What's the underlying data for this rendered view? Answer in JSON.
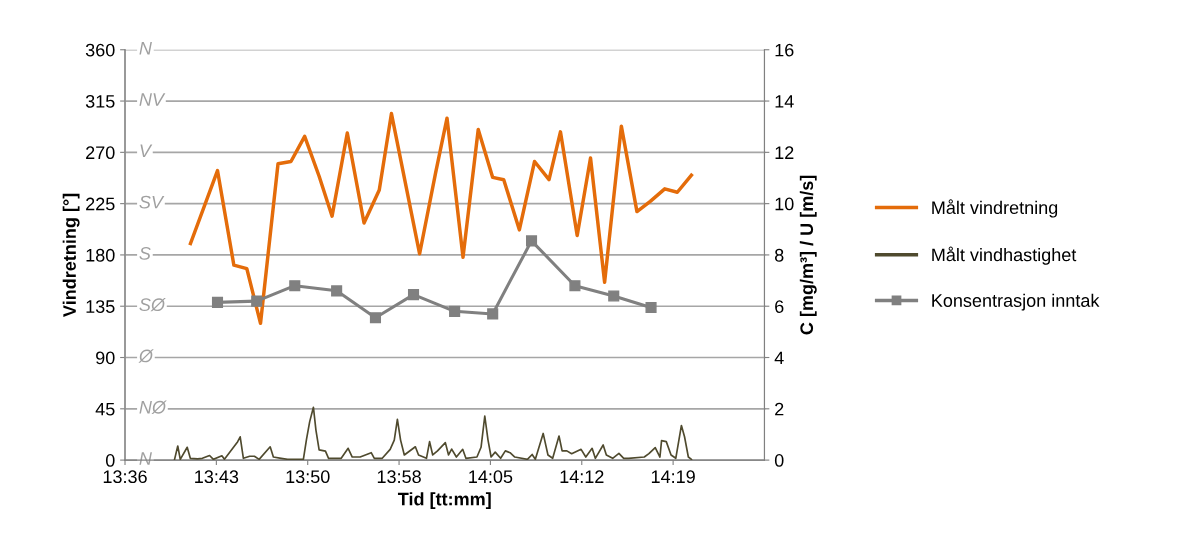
{
  "chart_data": {
    "type": "line",
    "xlabel": "Tid [tt:mm]",
    "ylabel": "Vindretning [°]",
    "y2label": "C [mg/m³] / U [m/s]",
    "xlim": [
      13.6,
      14.44
    ],
    "xticks": [
      {
        "value": 13.6,
        "label": "13:36"
      },
      {
        "value": 13.72,
        "label": "13:43"
      },
      {
        "value": 13.84,
        "label": "13:50"
      },
      {
        "value": 13.96,
        "label": "13:58"
      },
      {
        "value": 14.08,
        "label": "14:05"
      },
      {
        "value": 14.2,
        "label": "14:12"
      },
      {
        "value": 14.32,
        "label": "14:19"
      }
    ],
    "ylim": [
      0,
      360
    ],
    "yticks": [
      0,
      45,
      90,
      135,
      180,
      225,
      270,
      315,
      360
    ],
    "y2lim": [
      0,
      16
    ],
    "y2ticks": [
      0,
      2,
      4,
      6,
      8,
      10,
      12,
      14,
      16
    ],
    "annotations": [
      "N",
      "N"
    ],
    "ref_lines": [
      {
        "axis": "y",
        "value": 45,
        "label": "NØ"
      },
      {
        "axis": "y",
        "value": 90,
        "label": "Ø"
      },
      {
        "axis": "y",
        "value": 135,
        "label": "SØ"
      },
      {
        "axis": "y",
        "value": 180,
        "label": "S"
      },
      {
        "axis": "y",
        "value": 225,
        "label": "SV"
      },
      {
        "axis": "y",
        "value": 270,
        "label": "V"
      },
      {
        "axis": "y",
        "value": 315,
        "label": "NV"
      }
    ],
    "legend": "right",
    "series": [
      {
        "name": "Målt vindretning",
        "color": "#e46c0a",
        "axis": "y",
        "marker": "none",
        "x": [
          13.686,
          13.7215,
          13.743,
          13.76,
          13.778,
          13.801,
          13.818,
          13.836,
          13.855,
          13.872,
          13.892,
          13.914,
          13.934,
          13.95,
          13.987,
          14.008,
          14.023,
          14.044,
          14.064,
          14.083,
          14.0975,
          14.118,
          14.138,
          14.157,
          14.172,
          14.194,
          14.2115,
          14.23,
          14.252,
          14.2725,
          14.29,
          14.309,
          14.3255,
          14.344
        ],
        "values": [
          190,
          254,
          171,
          168,
          120,
          260,
          262,
          284,
          249,
          214,
          287,
          208,
          237,
          304,
          181,
          252,
          300,
          178,
          290,
          248,
          246,
          202,
          262,
          246,
          288,
          197,
          265,
          156,
          293,
          218,
          227,
          238,
          235,
          250
        ]
      },
      {
        "name": "Målt vindhastighet",
        "color": "#4f4a2e",
        "axis": "y2",
        "marker": "none",
        "x": [
          13.6651,
          13.6693,
          13.6726,
          13.6817,
          13.6858,
          13.6954,
          13.7016,
          13.7111,
          13.7161,
          13.7273,
          13.7306,
          13.748,
          13.7513,
          13.7555,
          13.7638,
          13.77,
          13.7762,
          13.7907,
          13.7949,
          13.8052,
          13.8135,
          13.8343,
          13.8384,
          13.8426,
          13.8475,
          13.8508,
          13.855,
          13.8633,
          13.8674,
          13.884,
          13.8931,
          13.8985,
          13.9089,
          13.9234,
          13.9275,
          13.9379,
          13.9483,
          13.9537,
          13.9578,
          13.962,
          13.9669,
          13.9814,
          13.9856,
          13.996,
          14.0001,
          14.0042,
          14.0105,
          14.0208,
          14.025,
          14.0291,
          14.0353,
          14.0436,
          14.0478,
          14.0623,
          14.0677,
          14.0726,
          14.0768,
          14.0809,
          14.0863,
          14.0934,
          14.0996,
          14.1058,
          14.112,
          14.1286,
          14.1348,
          14.139,
          14.1493,
          14.1556,
          14.1618,
          14.1701,
          14.1742,
          14.1804,
          14.1867,
          14.1991,
          14.2053,
          14.2136,
          14.2178,
          14.2281,
          14.2323,
          14.2406,
          14.2488,
          14.2551,
          14.2613,
          14.2821,
          14.2882,
          14.2965,
          14.3027,
          14.3048,
          14.311,
          14.3173,
          14.3235,
          14.3309,
          14.335,
          14.34,
          14.3441
        ],
        "values": [
          0.03,
          0.55,
          0.03,
          0.5,
          0.07,
          0.05,
          0.07,
          0.18,
          0.03,
          0.17,
          0.03,
          0.72,
          0.91,
          0.07,
          0.15,
          0.15,
          0.03,
          0.52,
          0.12,
          0.07,
          0.03,
          0.03,
          0.81,
          1.5,
          2.06,
          1.17,
          0.4,
          0.35,
          0.07,
          0.07,
          0.46,
          0.12,
          0.12,
          0.29,
          0.07,
          0.07,
          0.42,
          0.78,
          1.59,
          0.78,
          0.2,
          0.52,
          0.2,
          0.07,
          0.72,
          0.2,
          0.36,
          0.68,
          0.2,
          0.43,
          0.12,
          0.42,
          0.07,
          0.12,
          0.5,
          1.72,
          0.79,
          0.12,
          0.31,
          0.07,
          0.36,
          0.29,
          0.12,
          0.03,
          0.22,
          0.03,
          1.04,
          0.2,
          0.07,
          0.94,
          0.36,
          0.36,
          0.25,
          0.42,
          0.12,
          0.46,
          0.07,
          0.59,
          0.2,
          0.07,
          0.26,
          0.07,
          0.07,
          0.12,
          0.25,
          0.49,
          0.12,
          0.76,
          0.72,
          0.2,
          0.07,
          1.35,
          0.91,
          0.12,
          0.03
        ]
      },
      {
        "name": "Konsentrasjon inntak",
        "color": "#808080",
        "axis": "y2",
        "marker": "square",
        "x": [
          13.7215,
          13.773,
          13.823,
          13.878,
          13.929,
          13.979,
          14.033,
          14.083,
          14.134,
          14.191,
          14.242,
          14.291
        ],
        "values": [
          6.15,
          6.2,
          6.8,
          6.6,
          5.55,
          6.45,
          5.8,
          5.7,
          8.55,
          6.8,
          6.4,
          5.95
        ]
      }
    ]
  }
}
